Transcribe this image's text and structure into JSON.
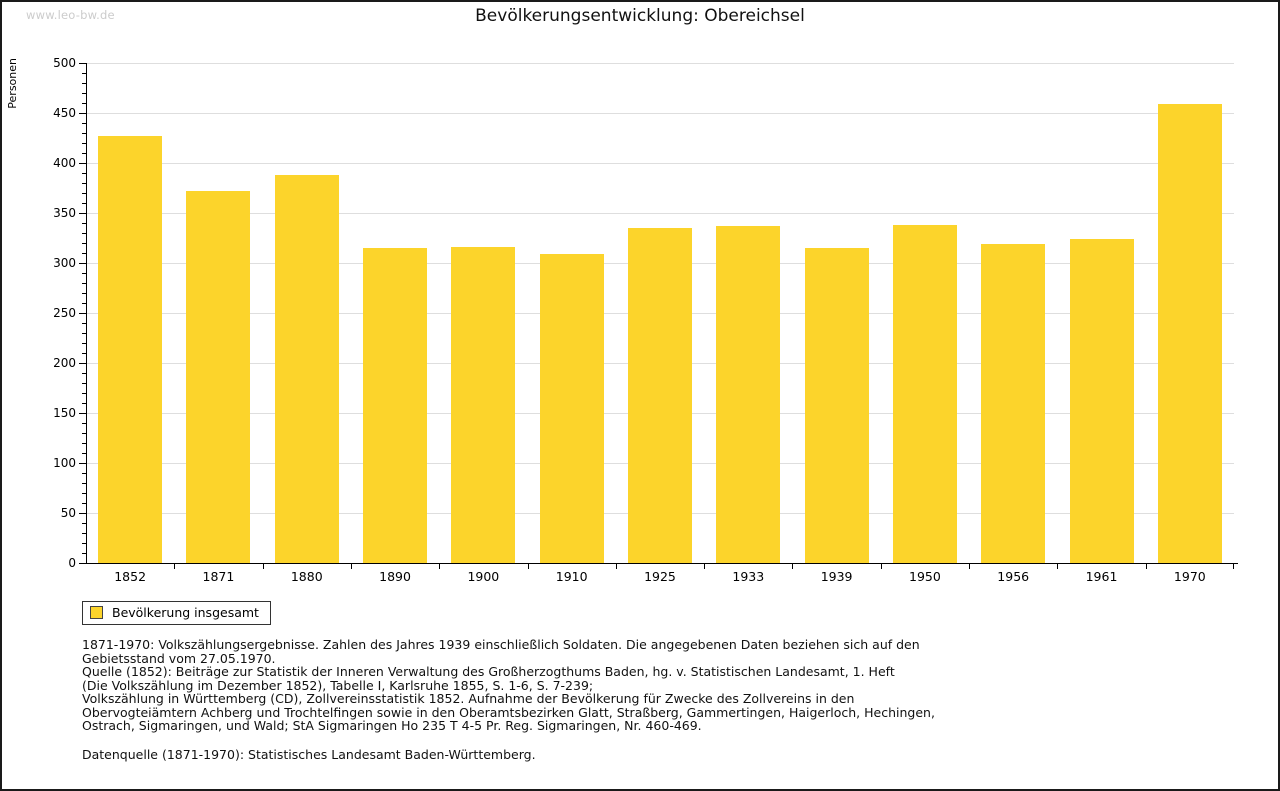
{
  "page": {
    "watermark": "www.leo-bw.de",
    "title": "Bevölkerungsentwicklung: Obereichsel"
  },
  "chart_data": {
    "type": "bar",
    "title": "Bevölkerungsentwicklung: Obereichsel",
    "xlabel": "",
    "ylabel": "Personen",
    "ylim": [
      0,
      500
    ],
    "ytick_step": 50,
    "y_minor_tick_step": 10,
    "grid": true,
    "bar_color": "#FCD42B",
    "axis_color": "#000000",
    "gridline_color": "#dedede",
    "categories": [
      "1852",
      "1871",
      "1880",
      "1890",
      "1900",
      "1910",
      "1925",
      "1933",
      "1939",
      "1950",
      "1956",
      "1961",
      "1970"
    ],
    "values": [
      427,
      372,
      388,
      315,
      316,
      309,
      335,
      337,
      315,
      338,
      319,
      324,
      459
    ],
    "series_name": "Bevölkerung insgesamt",
    "legend": [
      {
        "label": "Bevölkerung insgesamt",
        "color": "#FCD42B"
      }
    ],
    "legend_position": "bottom-left"
  },
  "footnotes": {
    "lines": [
      "1871-1970: Volkszählungsergebnisse. Zahlen des Jahres 1939 einschließlich Soldaten. Die angegebenen Daten beziehen sich auf den",
      "Gebietsstand vom 27.05.1970.",
      "Quelle (1852): Beiträge zur Statistik der Inneren Verwaltung des Großherzogthums Baden, hg. v. Statistischen Landesamt, 1. Heft",
      "(Die Volkszählung im Dezember 1852), Tabelle I, Karlsruhe 1855, S. 1-6, S. 7-239;",
      "Volkszählung in Württemberg (CD), Zollvereinsstatistik 1852. Aufnahme der Bevölkerung für Zwecke des Zollvereins in den",
      "Obervogteiämtern Achberg und Trochtelfingen sowie in den Oberamtsbezirken Glatt, Straßberg, Gammertingen, Haigerloch, Hechingen,",
      "Ostrach, Sigmaringen, und Wald; StA Sigmaringen Ho 235 T 4-5 Pr. Reg. Sigmaringen, Nr. 460-469."
    ],
    "datasource": "Datenquelle (1871-1970): Statistisches Landesamt Baden-Württemberg."
  }
}
